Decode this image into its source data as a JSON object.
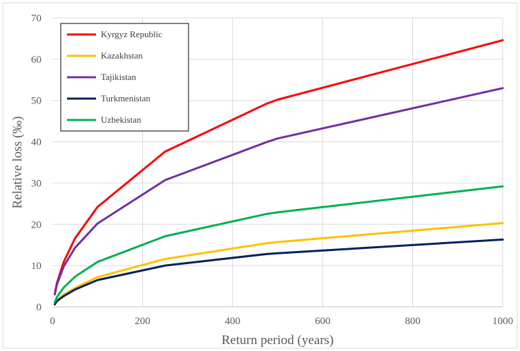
{
  "chart_data": {
    "type": "line",
    "title": "",
    "xlabel": "Return period (years)",
    "ylabel": "Relative loss (‰)",
    "xlim": [
      0,
      1000
    ],
    "ylim": [
      0,
      70
    ],
    "xticks": [
      0,
      200,
      400,
      600,
      800,
      1000
    ],
    "yticks": [
      0,
      10,
      20,
      30,
      40,
      50,
      60,
      70
    ],
    "grid": true,
    "legend_position": "top-left",
    "x": [
      5,
      10,
      25,
      50,
      100,
      250,
      475,
      500,
      1000
    ],
    "series": [
      {
        "name": "Kyrgyz Republic",
        "color": "#ff0000",
        "values": [
          3.2,
          5.8,
          10.9,
          16.6,
          24.2,
          37.6,
          49.2,
          50.2,
          64.6
        ]
      },
      {
        "name": "Kazakhstan",
        "color": "#ffc000",
        "values": [
          0.7,
          1.6,
          3.0,
          4.6,
          7.2,
          11.6,
          15.4,
          15.7,
          20.3
        ]
      },
      {
        "name": "Tajikistan",
        "color": "#7030a0",
        "values": [
          3.0,
          5.5,
          9.8,
          14.3,
          20.2,
          30.7,
          39.9,
          40.8,
          53.0
        ]
      },
      {
        "name": "Turkmenistan",
        "color": "#002060",
        "values": [
          0.6,
          1.4,
          2.6,
          4.2,
          6.5,
          10.0,
          12.8,
          13.0,
          16.3
        ]
      },
      {
        "name": "Uzbekistan",
        "color": "#00b050",
        "values": [
          1.1,
          2.4,
          4.7,
          7.3,
          10.9,
          17.1,
          22.5,
          22.9,
          29.2
        ]
      }
    ]
  }
}
